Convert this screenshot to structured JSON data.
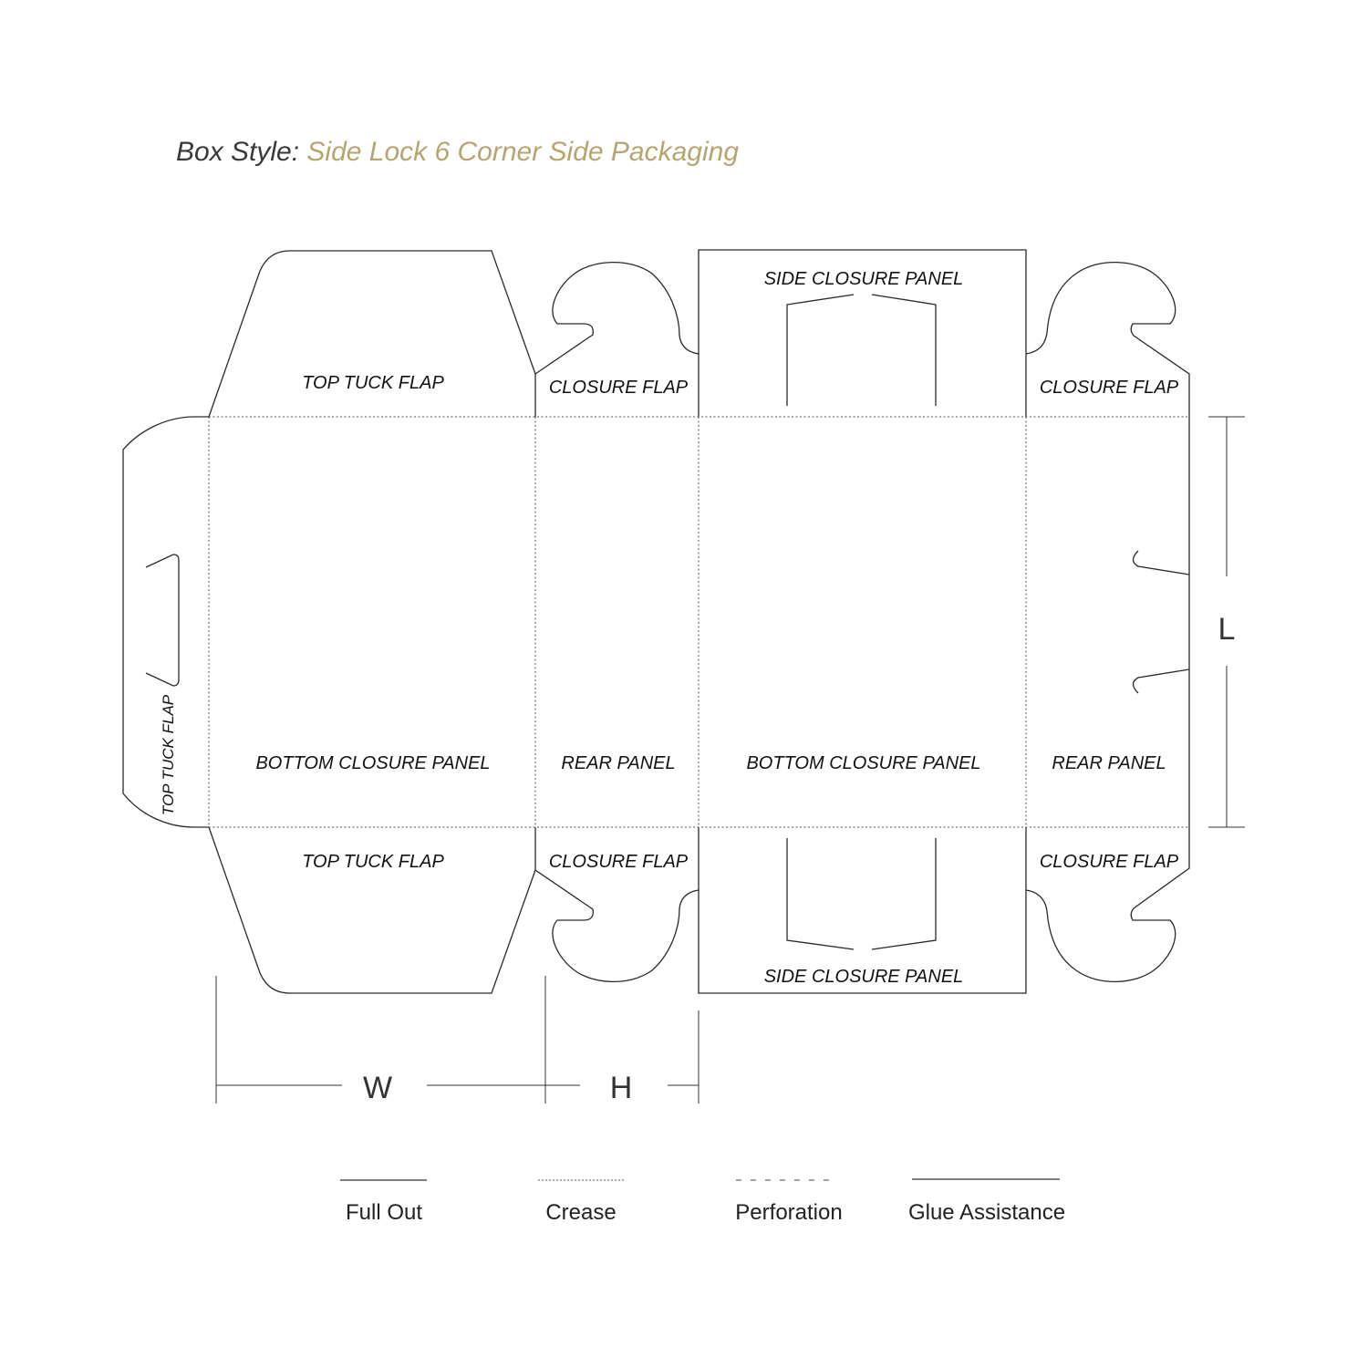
{
  "title": {
    "prefix": "Box Style:",
    "style_name": "Side Lock 6 Corner Side Packaging"
  },
  "colors": {
    "title_prefix": "#3a3a3a",
    "title_accent": "#b7a46f",
    "lines": "#2a2a2a"
  },
  "panels": {
    "top_tuck_flap_upper": "TOP TUCK FLAP",
    "top_tuck_flap_lower": "TOP TUCK FLAP",
    "top_tuck_flap_side": "TOP TUCK FLAP",
    "closure_flap_1": "CLOSURE FLAP",
    "closure_flap_2": "CLOSURE FLAP",
    "closure_flap_3": "CLOSURE FLAP",
    "closure_flap_4": "CLOSURE FLAP",
    "side_closure_panel_top": "SIDE CLOSURE PANEL",
    "side_closure_panel_bottom": "SIDE CLOSURE PANEL",
    "bottom_closure_panel_1": "BOTTOM CLOSURE PANEL",
    "bottom_closure_panel_2": "BOTTOM CLOSURE PANEL",
    "rear_panel_1": "REAR PANEL",
    "rear_panel_2": "REAR PANEL"
  },
  "dimensions": {
    "width": "W",
    "height": "H",
    "length": "L"
  },
  "legend": [
    {
      "label": "Full Out",
      "line": "solid"
    },
    {
      "label": "Crease",
      "line": "dotted"
    },
    {
      "label": "Perforation",
      "line": "dashed"
    },
    {
      "label": "Glue Assistance",
      "line": "solid"
    }
  ]
}
